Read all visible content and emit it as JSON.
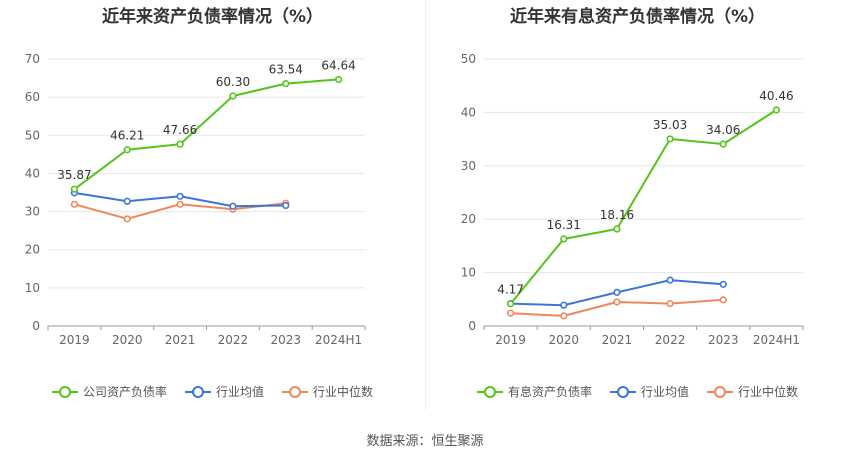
{
  "source": "数据来源：恒生聚源",
  "chart_data": [
    {
      "type": "line",
      "title": "近年来资产负债率情况（%）",
      "categories": [
        "2019",
        "2020",
        "2021",
        "2022",
        "2023",
        "2024H1"
      ],
      "ylim": [
        0,
        70
      ],
      "yticks": [
        0,
        10,
        20,
        30,
        40,
        50,
        60,
        70
      ],
      "grid": true,
      "legend_position": "bottom",
      "series": [
        {
          "name": "公司资产负债率",
          "color": "#52c41a",
          "values": [
            35.87,
            46.21,
            47.66,
            60.3,
            63.54,
            64.64
          ],
          "labels": [
            "35.87",
            "46.21",
            "47.66",
            "60.30",
            "63.54",
            "64.64"
          ]
        },
        {
          "name": "行业均值",
          "color": "#3a75d8",
          "values": [
            34.9,
            32.7,
            34.0,
            31.4,
            31.6,
            null
          ]
        },
        {
          "name": "行业中位数",
          "color": "#f0875a",
          "values": [
            31.9,
            28.1,
            31.9,
            30.6,
            32.2,
            null
          ]
        }
      ]
    },
    {
      "type": "line",
      "title": "近年来有息资产负债率情况（%）",
      "categories": [
        "2019",
        "2020",
        "2021",
        "2022",
        "2023",
        "2024H1"
      ],
      "ylim": [
        0,
        50
      ],
      "yticks": [
        0,
        10,
        20,
        30,
        40,
        50
      ],
      "grid": true,
      "legend_position": "bottom",
      "series": [
        {
          "name": "有息资产负债率",
          "color": "#52c41a",
          "values": [
            4.17,
            16.31,
            18.16,
            35.03,
            34.06,
            40.46
          ],
          "labels": [
            "4.17",
            "16.31",
            "18.16",
            "35.03",
            "34.06",
            "40.46"
          ]
        },
        {
          "name": "行业均值",
          "color": "#3a75d8",
          "values": [
            4.2,
            3.9,
            6.3,
            8.6,
            7.8,
            null
          ]
        },
        {
          "name": "行业中位数",
          "color": "#f0875a",
          "values": [
            2.4,
            1.9,
            4.5,
            4.2,
            4.9,
            null
          ]
        }
      ]
    }
  ]
}
